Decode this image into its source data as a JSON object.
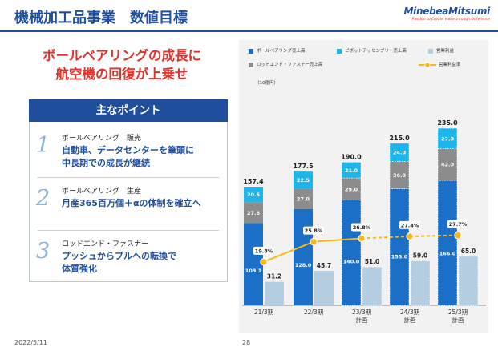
{
  "header": {
    "title": "機械加工品事業　数値目標",
    "logo_name": "MinebeaMitsumi",
    "logo_tagline": "Passion to Create Value through Difference"
  },
  "headline": {
    "line1": "ボールベアリングの成長に",
    "line2": "航空機の回復が上乗せ"
  },
  "points": {
    "header": "主なポイント",
    "items": [
      {
        "num": "1",
        "head": "ボールベアリング　販売",
        "body1": "自動車、データセンターを筆頭に",
        "body2": "中長期での成長が継続"
      },
      {
        "num": "2",
        "head": "ボールベアリング　生産",
        "body1": "月産365百万個＋αの体制を確立へ",
        "body2": ""
      },
      {
        "num": "3",
        "head": "ロッドエンド・ファスナー",
        "body1": "プッシュからプルへの転換で",
        "body2": "体質強化"
      }
    ]
  },
  "footer": {
    "date": "2022/5/11",
    "page": "28"
  },
  "colors": {
    "ball": "#1c6fc6",
    "pivot": "#1cb5ec",
    "rod": "#8c8c8c",
    "profit": "#b4cde0",
    "margin": "#f5b91a",
    "title": "#1f4e9c",
    "accent": "#e0312b"
  },
  "chart_data": {
    "type": "bar",
    "unit": "（10億円）",
    "categories": [
      "21/3期",
      "22/3期",
      "23/3期\n計画",
      "24/3期\n計画",
      "25/3期\n計画"
    ],
    "planned": [
      false,
      false,
      true,
      true,
      true
    ],
    "series": [
      {
        "name": "ボールベアリング売上高",
        "values": [
          109.1,
          128.0,
          140.0,
          155.0,
          166.0
        ],
        "color": "#1c6fc6",
        "stack": "sales"
      },
      {
        "name": "ロッドエンド・ファスナー売上高",
        "values": [
          27.8,
          27.0,
          29.0,
          36.0,
          42.0
        ],
        "color": "#8c8c8c",
        "stack": "sales"
      },
      {
        "name": "ピボットアッセンブリー売上高",
        "values": [
          20.5,
          22.5,
          21.0,
          24.0,
          27.0
        ],
        "color": "#1cb5ec",
        "stack": "sales"
      },
      {
        "name": "営業利益",
        "values": [
          31.2,
          45.7,
          51.0,
          59.0,
          65.0
        ],
        "color": "#b4cde0",
        "stack": "profit"
      }
    ],
    "totals": [
      157.4,
      177.5,
      190.0,
      215.0,
      235.0
    ],
    "line": {
      "name": "営業利益率",
      "values": [
        19.8,
        25.8,
        26.8,
        27.4,
        27.7
      ],
      "labels": [
        "19.8%",
        "25.8%",
        "26.8%",
        "27.4%",
        "27.7%"
      ],
      "color": "#f5b91a",
      "dashed_from_index": 2
    },
    "ylim": [
      0,
      250
    ],
    "legend_position": "top"
  }
}
